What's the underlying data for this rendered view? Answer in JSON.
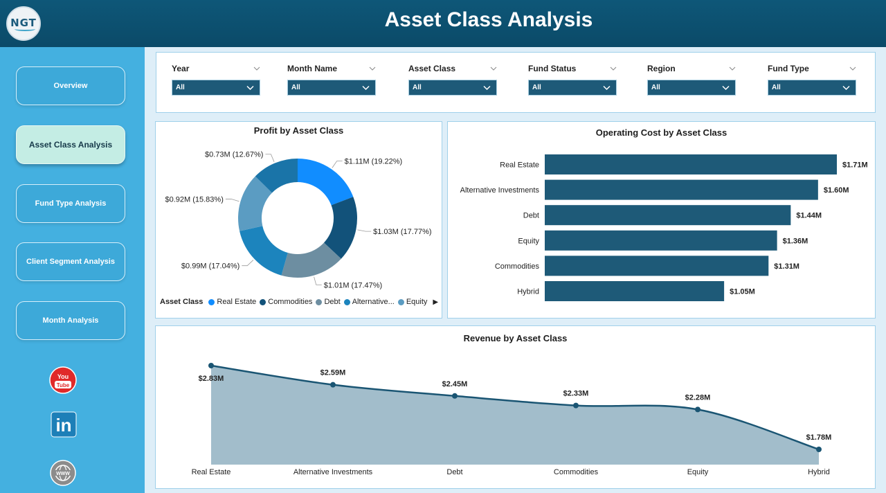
{
  "header": {
    "title": "Asset Class Analysis",
    "logo_text": "NGT"
  },
  "sidebar": {
    "items": [
      {
        "label": "Overview",
        "active": false
      },
      {
        "label": "Asset Class Analysis",
        "active": true
      },
      {
        "label": "Fund Type Analysis",
        "active": false
      },
      {
        "label": "Client Segment Analysis",
        "active": false
      },
      {
        "label": "Month Analysis",
        "active": false
      }
    ],
    "social": [
      {
        "icon": "youtube-icon",
        "text_top": "You",
        "text_bottom": "Tube",
        "color": "#e02a2a"
      },
      {
        "icon": "linkedin-icon",
        "text": "in",
        "color": "#1d7fb8"
      },
      {
        "icon": "globe-icon",
        "text": "WWW",
        "color": "#8c8c8c"
      }
    ]
  },
  "filters": [
    {
      "label": "Year",
      "value": "All"
    },
    {
      "label": "Month Name",
      "value": "All"
    },
    {
      "label": "Asset Class",
      "value": "All"
    },
    {
      "label": "Fund Status",
      "value": "All"
    },
    {
      "label": "Region",
      "value": "All"
    },
    {
      "label": "Fund Type",
      "value": "All"
    }
  ],
  "colors": {
    "header": "#0b4a68",
    "sidebar": "#44b0e0",
    "bar": "#1e5a78",
    "area_fill": "#a2bdcb",
    "area_line": "#1a5573"
  },
  "chart_data": [
    {
      "type": "pie",
      "title": "Profit by Asset Class",
      "legend_title": "Asset Class",
      "legend_labels": [
        "Real Estate",
        "Commodities",
        "Debt",
        "Alternative...",
        "Equity"
      ],
      "slices": [
        {
          "name": "Real Estate",
          "value": 1.11,
          "label": "$1.11M (19.22%)",
          "color": "#118dff"
        },
        {
          "name": "Commodities",
          "value": 1.03,
          "label": "$1.03M (17.77%)",
          "color": "#12527a"
        },
        {
          "name": "Debt",
          "value": 1.01,
          "label": "$1.01M (17.47%)",
          "color": "#6d8ea1"
        },
        {
          "name": "Alternative Investments",
          "value": 0.99,
          "label": "$0.99M (17.04%)",
          "color": "#1c84bd"
        },
        {
          "name": "Equity",
          "value": 0.92,
          "label": "$0.92M (15.83%)",
          "color": "#5b9cc2"
        },
        {
          "name": "Hybrid",
          "value": 0.73,
          "label": "$0.73M (12.67%)",
          "color": "#1a74a8"
        }
      ]
    },
    {
      "type": "bar",
      "orientation": "horizontal",
      "title": "Operating Cost by Asset Class",
      "categories": [
        "Real Estate",
        "Alternative Investments",
        "Debt",
        "Equity",
        "Commodities",
        "Hybrid"
      ],
      "values": [
        1.71,
        1.6,
        1.44,
        1.36,
        1.31,
        1.05
      ],
      "labels": [
        "$1.71M",
        "$1.60M",
        "$1.44M",
        "$1.36M",
        "$1.31M",
        "$1.05M"
      ]
    },
    {
      "type": "area",
      "title": "Revenue by Asset Class",
      "categories": [
        "Real Estate",
        "Alternative Investments",
        "Debt",
        "Commodities",
        "Equity",
        "Hybrid"
      ],
      "values": [
        2.83,
        2.59,
        2.45,
        2.33,
        2.28,
        1.78
      ],
      "labels": [
        "$2.83M",
        "$2.59M",
        "$2.45M",
        "$2.33M",
        "$2.28M",
        "$1.78M"
      ]
    }
  ]
}
